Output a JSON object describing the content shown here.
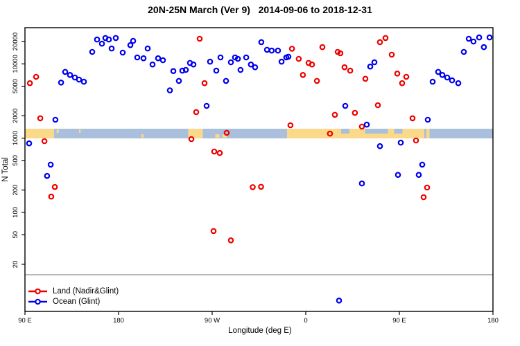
{
  "title": "20N-25N March (Ver 9)   2014-09-06 to 2018-12-31",
  "legend": {
    "items": [
      {
        "label": "Land (Nadir&Glint)",
        "color": "#ee0000"
      },
      {
        "label": "Ocean (Glint)",
        "color": "#0000ee"
      }
    ]
  },
  "chart_data": {
    "type": "scatter",
    "title": "20N-25N March (Ver 9)   2014-09-06 to 2018-12-31",
    "xlabel": "Longitude (deg E)",
    "ylabel": "N Total",
    "y_scale": "log",
    "x_axis_note": "longitude unwrapped in deg E from 90 (left) to 540 (right); axis wraps 90E-180-90W-0-90E-180",
    "xlim_unwrapped_degE": [
      90,
      540
    ],
    "ylim": [
      5,
      30000
    ],
    "grid": false,
    "legend_position": "bottom-left",
    "x_ticks": [
      {
        "lon": 90,
        "label": "90 E"
      },
      {
        "lon": 180,
        "label": "180"
      },
      {
        "lon": 270,
        "label": "90 W"
      },
      {
        "lon": 360,
        "label": "0"
      },
      {
        "lon": 450,
        "label": "90 E"
      },
      {
        "lon": 540,
        "label": "180"
      }
    ],
    "y_ticks": [
      {
        "value": 20000,
        "label": "20000"
      },
      {
        "value": 10000,
        "label": "10000"
      },
      {
        "value": 5000,
        "label": "5000"
      },
      {
        "value": 2000,
        "label": "2000"
      },
      {
        "value": 1000,
        "label": "1000"
      },
      {
        "value": 500,
        "label": "500"
      },
      {
        "value": 200,
        "label": "200"
      },
      {
        "value": 100,
        "label": "100"
      },
      {
        "value": 50,
        "label": "50"
      },
      {
        "value": 20,
        "label": "20"
      }
    ],
    "series": [
      {
        "name": "Land (Nadir&Glint)",
        "color": "#ee0000",
        "marker": "open-circle",
        "points": [
          [
            94.7,
            5500
          ],
          [
            100.7,
            6700
          ],
          [
            104.7,
            1850
          ],
          [
            108.7,
            910
          ],
          [
            115.3,
            163
          ],
          [
            118.7,
            220
          ],
          [
            250,
            970
          ],
          [
            254.7,
            2240
          ],
          [
            258,
            21800
          ],
          [
            262.7,
            5500
          ],
          [
            271.3,
            56
          ],
          [
            272,
            660
          ],
          [
            277.3,
            630
          ],
          [
            284,
            1180
          ],
          [
            288,
            42
          ],
          [
            309,
            219
          ],
          [
            317,
            221
          ],
          [
            345.3,
            1490
          ],
          [
            346.7,
            16000
          ],
          [
            353.3,
            11700
          ],
          [
            357.3,
            7100
          ],
          [
            362.7,
            10300
          ],
          [
            366,
            9800
          ],
          [
            370.7,
            5900
          ],
          [
            376,
            16800
          ],
          [
            383.3,
            1150
          ],
          [
            388,
            2060
          ],
          [
            390.7,
            14500
          ],
          [
            393.3,
            13900
          ],
          [
            397.3,
            9000
          ],
          [
            402.7,
            8100
          ],
          [
            407.3,
            2190
          ],
          [
            414,
            1430
          ],
          [
            417.3,
            6300
          ],
          [
            429.3,
            2780
          ],
          [
            431.3,
            19600
          ],
          [
            436.7,
            22300
          ],
          [
            442.7,
            13300
          ],
          [
            448,
            7400
          ],
          [
            452.7,
            5500
          ],
          [
            456.7,
            6700
          ],
          [
            462.7,
            1850
          ],
          [
            466,
            930
          ],
          [
            473.3,
            160
          ],
          [
            476.7,
            216
          ]
        ]
      },
      {
        "name": "Ocean (Glint)",
        "color": "#0000ee",
        "marker": "open-circle",
        "points": [
          [
            94,
            850
          ],
          [
            111.3,
            310
          ],
          [
            114.7,
            440
          ],
          [
            119.3,
            1770
          ],
          [
            124.7,
            5600
          ],
          [
            128.7,
            7800
          ],
          [
            133.3,
            7100
          ],
          [
            138,
            6550
          ],
          [
            142,
            6150
          ],
          [
            146.7,
            5750
          ],
          [
            154.7,
            14500
          ],
          [
            159.3,
            21300
          ],
          [
            164,
            18700
          ],
          [
            167.3,
            22300
          ],
          [
            170.7,
            21300
          ],
          [
            173.3,
            16100
          ],
          [
            177.3,
            22300
          ],
          [
            184,
            14200
          ],
          [
            191.3,
            17900
          ],
          [
            194,
            20400
          ],
          [
            198,
            12200
          ],
          [
            204,
            11900
          ],
          [
            208,
            16100
          ],
          [
            212.7,
            9800
          ],
          [
            218,
            11900
          ],
          [
            222.7,
            11200
          ],
          [
            229.3,
            4400
          ],
          [
            232.7,
            8000
          ],
          [
            238,
            5900
          ],
          [
            241.3,
            8100
          ],
          [
            244.7,
            8300
          ],
          [
            248.7,
            10300
          ],
          [
            252,
            9800
          ],
          [
            264.7,
            2720
          ],
          [
            268,
            10700
          ],
          [
            274,
            8100
          ],
          [
            278,
            12200
          ],
          [
            283.3,
            5900
          ],
          [
            288,
            10500
          ],
          [
            292,
            12200
          ],
          [
            294.7,
            11700
          ],
          [
            297.3,
            8300
          ],
          [
            302.7,
            12200
          ],
          [
            307.3,
            9800
          ],
          [
            311.3,
            9000
          ],
          [
            317.3,
            19600
          ],
          [
            322.7,
            15500
          ],
          [
            327.3,
            15100
          ],
          [
            333.3,
            15100
          ],
          [
            336.7,
            10700
          ],
          [
            341.3,
            12200
          ],
          [
            343.3,
            12500
          ],
          [
            392,
            6.5
          ],
          [
            398,
            2720
          ],
          [
            414,
            245
          ],
          [
            418.7,
            1520
          ],
          [
            422,
            9200
          ],
          [
            426,
            10500
          ],
          [
            431.3,
            780
          ],
          [
            448.7,
            320
          ],
          [
            451.3,
            870
          ],
          [
            468.7,
            320
          ],
          [
            472,
            440
          ],
          [
            477.3,
            1770
          ],
          [
            482,
            5750
          ],
          [
            487.3,
            7800
          ],
          [
            491.3,
            7100
          ],
          [
            496,
            6550
          ],
          [
            500.7,
            6000
          ],
          [
            506.7,
            5500
          ],
          [
            512,
            14500
          ],
          [
            516.7,
            21800
          ],
          [
            521.3,
            20000
          ],
          [
            526.7,
            22700
          ],
          [
            531.3,
            16800
          ],
          [
            536.7,
            22700
          ]
        ]
      }
    ],
    "map_strip": {
      "description": "land/ocean mask band for 20N-25N drawn across plot near N=1000-1400",
      "land_color": "#fbd98b",
      "ocean_color": "#a9bfdb",
      "land_segments_degE": [
        {
          "from": 90,
          "to": 118
        },
        {
          "from": 247,
          "to": 261
        },
        {
          "from": 342,
          "to": 479
        }
      ],
      "ocean_patches_over_land_degE": [
        {
          "from": 394,
          "to": 402,
          "part": "top"
        },
        {
          "from": 417,
          "to": 439,
          "part": "top"
        },
        {
          "from": 445,
          "to": 453,
          "part": "top"
        },
        {
          "from": 474,
          "to": 476,
          "part": "full"
        }
      ],
      "island_specks_degE": [
        {
          "from": 120.5,
          "to": 122.5,
          "part": "top"
        },
        {
          "from": 142,
          "to": 143.5,
          "part": "top"
        },
        {
          "from": 202,
          "to": 204,
          "part": "bottom"
        },
        {
          "from": 273,
          "to": 277,
          "part": "bottom"
        },
        {
          "from": 280,
          "to": 284,
          "part": "bottom"
        }
      ]
    }
  }
}
